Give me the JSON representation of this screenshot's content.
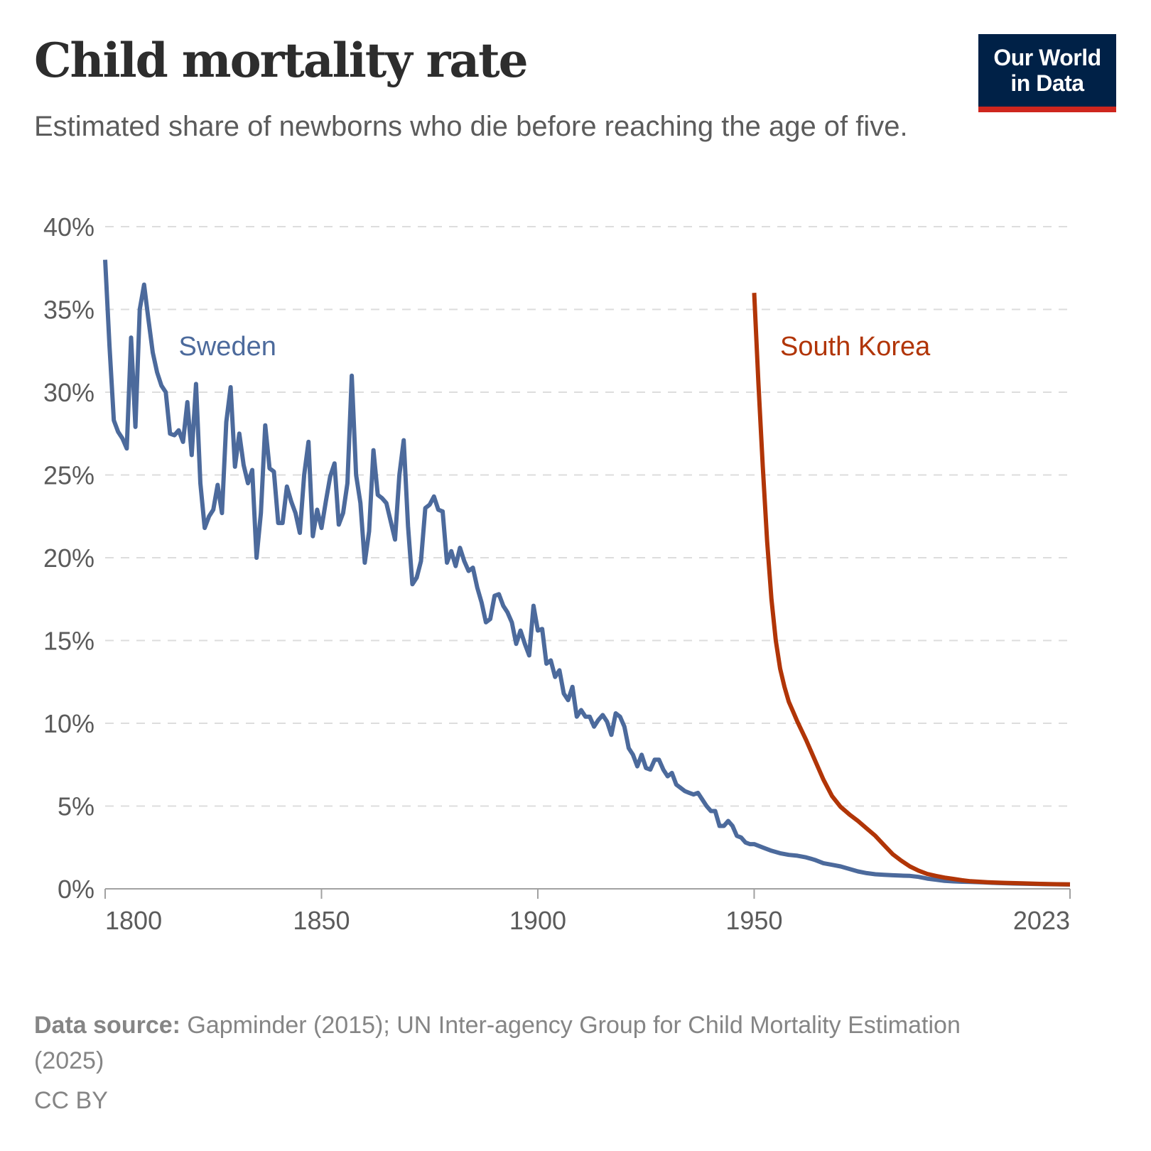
{
  "header": {
    "title": "Child mortality rate",
    "subtitle": "Estimated share of newborns who die before reaching the age of five."
  },
  "logo": {
    "line1": "Our World",
    "line2": "in Data",
    "background": "#002147",
    "accent": "#ce261e"
  },
  "footer": {
    "source_label": "Data source:",
    "source_text": "Gapminder (2015); UN Inter-agency Group for Child Mortality Estimation (2025)",
    "license": "CC BY"
  },
  "chart_data": {
    "type": "line",
    "title": "Child mortality rate",
    "subtitle": "Estimated share of newborns who die before reaching the age of five.",
    "xlabel": "",
    "ylabel": "",
    "xlim": [
      1800,
      2023
    ],
    "ylim": [
      0,
      40
    ],
    "x_ticks": [
      1800,
      1850,
      1900,
      1950,
      2023
    ],
    "x_tick_labels": [
      "1800",
      "1850",
      "1900",
      "1950",
      "2023"
    ],
    "y_ticks": [
      0,
      5,
      10,
      15,
      20,
      25,
      30,
      35,
      40
    ],
    "y_tick_labels": [
      "0%",
      "5%",
      "10%",
      "15%",
      "20%",
      "25%",
      "30%",
      "35%",
      "40%"
    ],
    "grid": "horizontal dashed",
    "legend": "inline labels",
    "series": [
      {
        "name": "Sweden",
        "color": "#4c6a9c",
        "label_position": {
          "x": 1817,
          "y": 32.8
        },
        "points": [
          [
            1800,
            38.0
          ],
          [
            1801,
            32.8
          ],
          [
            1802,
            28.3
          ],
          [
            1803,
            27.6
          ],
          [
            1804,
            27.2
          ],
          [
            1805,
            26.6
          ],
          [
            1806,
            33.3
          ],
          [
            1807,
            27.9
          ],
          [
            1808,
            35.0
          ],
          [
            1809,
            36.5
          ],
          [
            1810,
            34.4
          ],
          [
            1811,
            32.4
          ],
          [
            1812,
            31.2
          ],
          [
            1813,
            30.4
          ],
          [
            1814,
            30.0
          ],
          [
            1815,
            27.5
          ],
          [
            1816,
            27.4
          ],
          [
            1817,
            27.7
          ],
          [
            1818,
            27.0
          ],
          [
            1819,
            29.4
          ],
          [
            1820,
            26.2
          ],
          [
            1821,
            30.5
          ],
          [
            1822,
            24.5
          ],
          [
            1823,
            21.8
          ],
          [
            1824,
            22.5
          ],
          [
            1825,
            22.9
          ],
          [
            1826,
            24.4
          ],
          [
            1827,
            22.7
          ],
          [
            1828,
            28.2
          ],
          [
            1829,
            30.3
          ],
          [
            1830,
            25.5
          ],
          [
            1831,
            27.5
          ],
          [
            1832,
            25.6
          ],
          [
            1833,
            24.5
          ],
          [
            1834,
            25.3
          ],
          [
            1835,
            20.0
          ],
          [
            1836,
            22.7
          ],
          [
            1837,
            28.0
          ],
          [
            1838,
            25.4
          ],
          [
            1839,
            25.2
          ],
          [
            1840,
            22.1
          ],
          [
            1841,
            22.1
          ],
          [
            1842,
            24.3
          ],
          [
            1843,
            23.4
          ],
          [
            1844,
            22.7
          ],
          [
            1845,
            21.5
          ],
          [
            1846,
            25.0
          ],
          [
            1847,
            27.0
          ],
          [
            1848,
            21.3
          ],
          [
            1849,
            22.9
          ],
          [
            1850,
            21.8
          ],
          [
            1851,
            23.4
          ],
          [
            1852,
            24.9
          ],
          [
            1853,
            25.7
          ],
          [
            1854,
            22.0
          ],
          [
            1855,
            22.7
          ],
          [
            1856,
            24.5
          ],
          [
            1857,
            31.0
          ],
          [
            1858,
            25.0
          ],
          [
            1859,
            23.3
          ],
          [
            1860,
            19.7
          ],
          [
            1861,
            21.6
          ],
          [
            1862,
            26.5
          ],
          [
            1863,
            23.8
          ],
          [
            1864,
            23.6
          ],
          [
            1865,
            23.3
          ],
          [
            1866,
            22.2
          ],
          [
            1867,
            21.1
          ],
          [
            1868,
            25.0
          ],
          [
            1869,
            27.1
          ],
          [
            1870,
            21.9
          ],
          [
            1871,
            18.4
          ],
          [
            1872,
            18.8
          ],
          [
            1873,
            19.8
          ],
          [
            1874,
            23.0
          ],
          [
            1875,
            23.2
          ],
          [
            1876,
            23.7
          ],
          [
            1877,
            22.9
          ],
          [
            1878,
            22.8
          ],
          [
            1879,
            19.7
          ],
          [
            1880,
            20.4
          ],
          [
            1881,
            19.5
          ],
          [
            1882,
            20.6
          ],
          [
            1883,
            19.8
          ],
          [
            1884,
            19.2
          ],
          [
            1885,
            19.4
          ],
          [
            1886,
            18.2
          ],
          [
            1887,
            17.3
          ],
          [
            1888,
            16.1
          ],
          [
            1889,
            16.3
          ],
          [
            1890,
            17.7
          ],
          [
            1891,
            17.8
          ],
          [
            1892,
            17.1
          ],
          [
            1893,
            16.7
          ],
          [
            1894,
            16.1
          ],
          [
            1895,
            14.8
          ],
          [
            1896,
            15.6
          ],
          [
            1897,
            14.8
          ],
          [
            1898,
            14.1
          ],
          [
            1899,
            17.1
          ],
          [
            1900,
            15.6
          ],
          [
            1901,
            15.7
          ],
          [
            1902,
            13.6
          ],
          [
            1903,
            13.8
          ],
          [
            1904,
            12.8
          ],
          [
            1905,
            13.2
          ],
          [
            1906,
            11.8
          ],
          [
            1907,
            11.4
          ],
          [
            1908,
            12.2
          ],
          [
            1909,
            10.4
          ],
          [
            1910,
            10.8
          ],
          [
            1911,
            10.4
          ],
          [
            1912,
            10.4
          ],
          [
            1913,
            9.8
          ],
          [
            1914,
            10.2
          ],
          [
            1915,
            10.5
          ],
          [
            1916,
            10.1
          ],
          [
            1917,
            9.3
          ],
          [
            1918,
            10.6
          ],
          [
            1919,
            10.4
          ],
          [
            1920,
            9.8
          ],
          [
            1921,
            8.5
          ],
          [
            1922,
            8.1
          ],
          [
            1923,
            7.4
          ],
          [
            1924,
            8.1
          ],
          [
            1925,
            7.3
          ],
          [
            1926,
            7.2
          ],
          [
            1927,
            7.8
          ],
          [
            1928,
            7.8
          ],
          [
            1929,
            7.2
          ],
          [
            1930,
            6.8
          ],
          [
            1931,
            7.0
          ],
          [
            1932,
            6.3
          ],
          [
            1933,
            6.1
          ],
          [
            1934,
            5.9
          ],
          [
            1935,
            5.8
          ],
          [
            1936,
            5.7
          ],
          [
            1937,
            5.8
          ],
          [
            1938,
            5.4
          ],
          [
            1939,
            5.0
          ],
          [
            1940,
            4.7
          ],
          [
            1941,
            4.7
          ],
          [
            1942,
            3.8
          ],
          [
            1943,
            3.8
          ],
          [
            1944,
            4.1
          ],
          [
            1945,
            3.8
          ],
          [
            1946,
            3.2
          ],
          [
            1947,
            3.1
          ],
          [
            1948,
            2.8
          ],
          [
            1949,
            2.7
          ],
          [
            1950,
            2.7
          ],
          [
            1952,
            2.5
          ],
          [
            1954,
            2.3
          ],
          [
            1956,
            2.15
          ],
          [
            1958,
            2.05
          ],
          [
            1960,
            2.0
          ],
          [
            1962,
            1.9
          ],
          [
            1964,
            1.75
          ],
          [
            1966,
            1.55
          ],
          [
            1968,
            1.45
          ],
          [
            1970,
            1.35
          ],
          [
            1972,
            1.2
          ],
          [
            1974,
            1.05
          ],
          [
            1976,
            0.95
          ],
          [
            1978,
            0.88
          ],
          [
            1980,
            0.85
          ],
          [
            1982,
            0.82
          ],
          [
            1984,
            0.8
          ],
          [
            1986,
            0.78
          ],
          [
            1988,
            0.72
          ],
          [
            1990,
            0.62
          ],
          [
            1992,
            0.55
          ],
          [
            1994,
            0.48
          ],
          [
            1996,
            0.45
          ],
          [
            1998,
            0.43
          ],
          [
            2000,
            0.42
          ],
          [
            2003,
            0.39
          ],
          [
            2006,
            0.35
          ],
          [
            2010,
            0.32
          ],
          [
            2014,
            0.3
          ],
          [
            2018,
            0.28
          ],
          [
            2023,
            0.26
          ]
        ]
      },
      {
        "name": "South Korea",
        "color": "#b13507",
        "label_position": {
          "x": 1956,
          "y": 32.8
        },
        "points": [
          [
            1950,
            36.0
          ],
          [
            1951,
            30.5
          ],
          [
            1952,
            25.5
          ],
          [
            1953,
            21.0
          ],
          [
            1954,
            17.5
          ],
          [
            1955,
            15.0
          ],
          [
            1956,
            13.3
          ],
          [
            1957,
            12.2
          ],
          [
            1958,
            11.3
          ],
          [
            1959,
            10.7
          ],
          [
            1960,
            10.1
          ],
          [
            1962,
            9.0
          ],
          [
            1964,
            7.8
          ],
          [
            1966,
            6.6
          ],
          [
            1968,
            5.6
          ],
          [
            1970,
            4.95
          ],
          [
            1972,
            4.5
          ],
          [
            1974,
            4.1
          ],
          [
            1976,
            3.65
          ],
          [
            1978,
            3.2
          ],
          [
            1980,
            2.65
          ],
          [
            1982,
            2.1
          ],
          [
            1984,
            1.7
          ],
          [
            1986,
            1.35
          ],
          [
            1988,
            1.1
          ],
          [
            1990,
            0.9
          ],
          [
            1992,
            0.78
          ],
          [
            1994,
            0.68
          ],
          [
            1996,
            0.6
          ],
          [
            1998,
            0.52
          ],
          [
            2000,
            0.46
          ],
          [
            2004,
            0.4
          ],
          [
            2008,
            0.36
          ],
          [
            2012,
            0.33
          ],
          [
            2016,
            0.3
          ],
          [
            2020,
            0.28
          ],
          [
            2023,
            0.27
          ]
        ]
      }
    ]
  }
}
